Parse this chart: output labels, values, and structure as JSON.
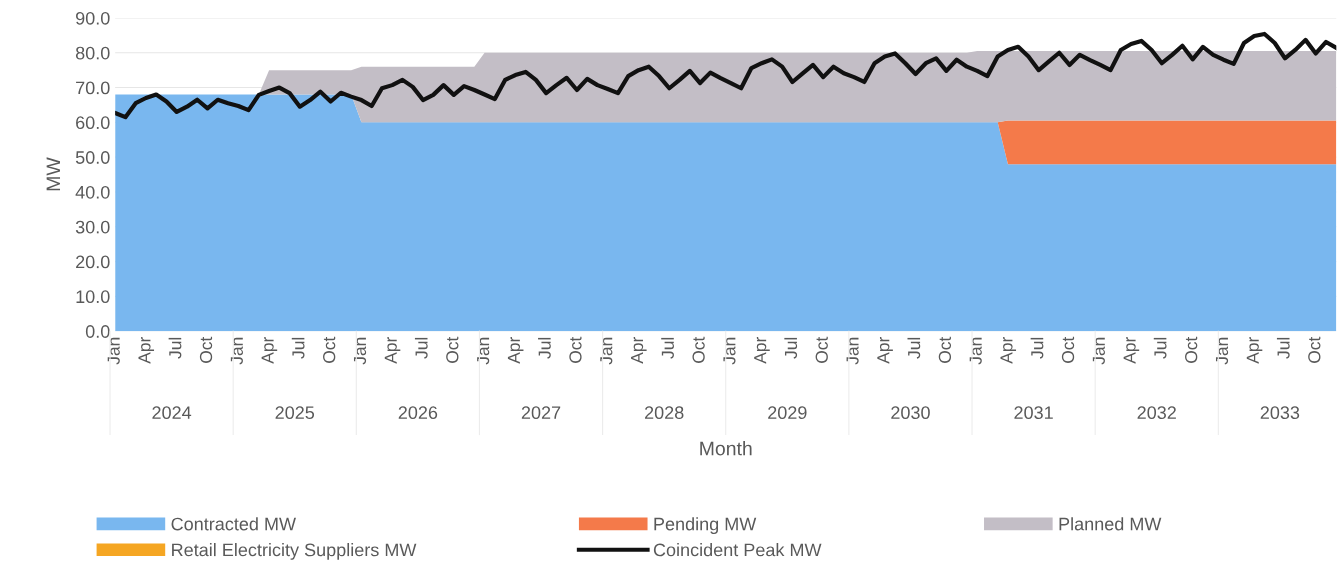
{
  "chart_data": {
    "type": "area",
    "stacked": true,
    "xlabel": "Month",
    "ylabel": "MW",
    "categories": [
      "Jan",
      null,
      null,
      "Apr",
      null,
      null,
      "Jul",
      null,
      null,
      "Oct",
      null,
      null,
      "Jan",
      null,
      null,
      "Apr",
      null,
      null,
      "Jul",
      null,
      null,
      "Oct",
      null,
      null,
      "Jan",
      null,
      null,
      "Apr",
      null,
      null,
      "Jul",
      null,
      null,
      "Oct",
      null,
      null,
      "Jan",
      null,
      null,
      "Apr",
      null,
      null,
      "Jul",
      null,
      null,
      "Oct",
      null,
      null,
      "Jan",
      null,
      null,
      "Apr",
      null,
      null,
      "Jul",
      null,
      null,
      "Oct",
      null,
      null,
      "Jan",
      null,
      null,
      "Apr",
      null,
      null,
      "Jul",
      null,
      null,
      "Oct",
      null,
      null,
      "Jan",
      null,
      null,
      "Apr",
      null,
      null,
      "Jul",
      null,
      null,
      "Oct",
      null,
      null,
      "Jan",
      null,
      null,
      "Apr",
      null,
      null,
      "Jul",
      null,
      null,
      "Oct",
      null,
      null,
      "Jan",
      null,
      null,
      "Apr",
      null,
      null,
      "Jul",
      null,
      null,
      "Oct",
      null,
      null,
      "Jan",
      null,
      null,
      "Apr",
      null,
      null,
      "Jul",
      null,
      null,
      "Oct",
      null,
      null
    ],
    "annotations": [
      "2024",
      "2025",
      "2026",
      "2027",
      "2028",
      "2029",
      "2030",
      "2031",
      "2032",
      "2033"
    ],
    "ylim": [
      0,
      90
    ],
    "yticks": [
      {
        "value": 0,
        "label": "0.0"
      },
      {
        "value": 10,
        "label": "10.0"
      },
      {
        "value": 20,
        "label": "20.0"
      },
      {
        "value": 30,
        "label": "30.0"
      },
      {
        "value": 40,
        "label": "40.0"
      },
      {
        "value": 50,
        "label": "50.0"
      },
      {
        "value": 60,
        "label": "60.0"
      },
      {
        "value": 70,
        "label": "70.0"
      },
      {
        "value": 80,
        "label": "80.0"
      },
      {
        "value": 90,
        "label": "90.0"
      }
    ],
    "grid": "y",
    "legend": "bottom",
    "series": [
      {
        "name": "Contracted MW",
        "color": "#79b7ef",
        "values": [
          68,
          68,
          68,
          68,
          68,
          68,
          68,
          68,
          68,
          68,
          68,
          68,
          68,
          68,
          68,
          68,
          68,
          68,
          68,
          68,
          68,
          68,
          68,
          68,
          60,
          60,
          60,
          60,
          60,
          60,
          60,
          60,
          60,
          60,
          60,
          60,
          60,
          60,
          60,
          60,
          60,
          60,
          60,
          60,
          60,
          60,
          60,
          60,
          60,
          60,
          60,
          60,
          60,
          60,
          60,
          60,
          60,
          60,
          60,
          60,
          60,
          60,
          60,
          60,
          60,
          60,
          60,
          60,
          60,
          60,
          60,
          60,
          60,
          60,
          60,
          60,
          60,
          60,
          60,
          60,
          60,
          60,
          60,
          60,
          60,
          60,
          60,
          48,
          48,
          48,
          48,
          48,
          48,
          48,
          48,
          48,
          48,
          48,
          48,
          48,
          48,
          48,
          48,
          48,
          48,
          48,
          48,
          48,
          48,
          48,
          48,
          48,
          48,
          48,
          48,
          48,
          48,
          48,
          48,
          48
        ]
      },
      {
        "name": "Pending MW",
        "color": "#f47a4a",
        "values": [
          0,
          0,
          0,
          0,
          0,
          0,
          0,
          0,
          0,
          0,
          0,
          0,
          0,
          0,
          0,
          0,
          0,
          0,
          0,
          0,
          0,
          0,
          0,
          0,
          0,
          0,
          0,
          0,
          0,
          0,
          0,
          0,
          0,
          0,
          0,
          0,
          0,
          0,
          0,
          0,
          0,
          0,
          0,
          0,
          0,
          0,
          0,
          0,
          0,
          0,
          0,
          0,
          0,
          0,
          0,
          0,
          0,
          0,
          0,
          0,
          0,
          0,
          0,
          0,
          0,
          0,
          0,
          0,
          0,
          0,
          0,
          0,
          0,
          0,
          0,
          0,
          0,
          0,
          0,
          0,
          0,
          0,
          0,
          0,
          0,
          0,
          0,
          12.5,
          12.5,
          12.5,
          12.5,
          12.5,
          12.5,
          12.5,
          12.5,
          12.5,
          12.5,
          12.5,
          12.5,
          12.5,
          12.5,
          12.5,
          12.5,
          12.5,
          12.5,
          12.5,
          12.5,
          12.5,
          12.5,
          12.5,
          12.5,
          12.5,
          12.5,
          12.5,
          12.5,
          12.5,
          12.5,
          12.5,
          12.5,
          12.5
        ]
      },
      {
        "name": "Planned MW",
        "color": "#c3bec6",
        "values": [
          0,
          0,
          0,
          0,
          0,
          0,
          0,
          0,
          0,
          0,
          0,
          0,
          0,
          0,
          0,
          7,
          7,
          7,
          7,
          7,
          7,
          7,
          7,
          7,
          16,
          16,
          16,
          16,
          16,
          16,
          16,
          16,
          16,
          16,
          16,
          16,
          20,
          20,
          20,
          20,
          20,
          20,
          20,
          20,
          20,
          20,
          20,
          20,
          20,
          20,
          20,
          20,
          20,
          20,
          20,
          20,
          20,
          20,
          20,
          20,
          20,
          20,
          20,
          20,
          20,
          20,
          20,
          20,
          20,
          20,
          20,
          20,
          20,
          20,
          20,
          20,
          20,
          20,
          20,
          20,
          20,
          20,
          20,
          20,
          20.5,
          20.5,
          20.5,
          20,
          20,
          20,
          20,
          20,
          20,
          20,
          20,
          20,
          20,
          20,
          20,
          20,
          20,
          20,
          20,
          20,
          20,
          20,
          20,
          20,
          20,
          20,
          20,
          20,
          20,
          20,
          20,
          20,
          20,
          20,
          20,
          20
        ]
      },
      {
        "name": "Retail Electricity Suppliers MW",
        "color": "#f5a623",
        "values": [
          null,
          null,
          null,
          null,
          null,
          null,
          null,
          null,
          null,
          null,
          null,
          null,
          null,
          null,
          null,
          null,
          null,
          null,
          null,
          null,
          null,
          null,
          null,
          null,
          null,
          null,
          null,
          null,
          null,
          null,
          null,
          null,
          null,
          null,
          null,
          null,
          null,
          null,
          null,
          null,
          null,
          null,
          null,
          null,
          null,
          null,
          null,
          null,
          null,
          null,
          null,
          null,
          null,
          null,
          null,
          null,
          null,
          null,
          null,
          null,
          null,
          null,
          null,
          null,
          null,
          null,
          null,
          null,
          null,
          null,
          null,
          null,
          null,
          null,
          null,
          null,
          null,
          null,
          null,
          null,
          null,
          null,
          null,
          null,
          null,
          null,
          null,
          null,
          null,
          null,
          null,
          null,
          null,
          null,
          null,
          null,
          null,
          null,
          null,
          null,
          null,
          null,
          null,
          null,
          null,
          null,
          null,
          null,
          null,
          null,
          null,
          null,
          null,
          null,
          null,
          null,
          null,
          null,
          null,
          null
        ]
      },
      {
        "name": "Coincident Peak MW",
        "color": "#111111",
        "type": "line",
        "values": [
          62.7,
          61.5,
          65.5,
          67,
          68,
          66,
          63,
          64.5,
          66.5,
          64,
          66.5,
          65.5,
          64.7,
          63.5,
          67.9,
          69,
          70,
          68.4,
          64.5,
          66.4,
          68.8,
          66,
          68.5,
          67.4,
          66.4,
          64.7,
          69.8,
          70.7,
          72.2,
          70.2,
          66.4,
          67.9,
          70.7,
          67.9,
          70.4,
          69.3,
          68,
          66.7,
          72.2,
          73.6,
          74.5,
          72.2,
          68.4,
          70.7,
          72.8,
          69.3,
          72.5,
          70.7,
          69.6,
          68.4,
          73.3,
          75,
          76,
          73.3,
          69.8,
          72.2,
          74.8,
          71.3,
          74.3,
          72.7,
          71.3,
          69.8,
          75.6,
          77,
          78.1,
          76,
          71.6,
          74.1,
          76.5,
          73,
          76,
          74.1,
          73,
          71.6,
          77,
          78.9,
          79.8,
          77,
          73.9,
          77,
          78.4,
          74.8,
          78,
          76,
          74.8,
          73.3,
          78.9,
          80.8,
          81.7,
          78.9,
          75,
          77.5,
          80,
          76.5,
          79.4,
          77.9,
          76.5,
          75,
          80.8,
          82.5,
          83.4,
          80.8,
          77,
          79.4,
          82,
          78.1,
          81.7,
          79.4,
          78,
          76.8,
          82.8,
          84.8,
          85.4,
          82.8,
          78.4,
          80.8,
          83.7,
          79.8,
          83.1,
          81.4
        ]
      }
    ]
  }
}
